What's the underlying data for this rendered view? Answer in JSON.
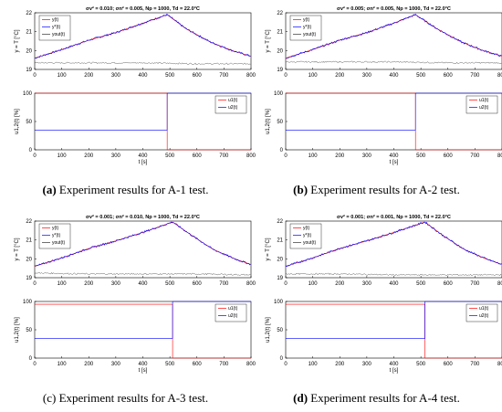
{
  "panels": [
    {
      "id": "A-1",
      "title": "σv² = 0.010; σn² = 0.005, Np = 1000, Td = 22.0°C",
      "caption_label": "(a)",
      "caption_text": " Experiment results for A-1 test.",
      "switch_time": 490
    },
    {
      "id": "A-2",
      "title": "σv² = 0.005; σn² = 0.005, Np = 1000, Td = 22.0°C",
      "caption_label": "(b)",
      "caption_text": " Experiment results for A-2 test.",
      "switch_time": 480
    },
    {
      "id": "A-3",
      "title": "σv² = 0.001; σn² = 0.010, Np = 1000, Td = 22.0°C",
      "caption_label": "(c)",
      "caption_text": " Experiment results for A-3 test.",
      "switch_time": 510
    },
    {
      "id": "A-4",
      "title": "σv² = 0.001; σn² = 0.001, Np = 1000, Td = 22.0°C",
      "caption_label": "(d)",
      "caption_text": " Experiment results for A-4 test.",
      "switch_time": 515
    }
  ],
  "chart_data": [
    {
      "type": "line",
      "title": "σv² = 0.010; σn² = 0.005, Np = 1000, Td = 22.0°C",
      "ylabel": "y = T [°C]",
      "xlim": [
        0,
        800
      ],
      "ylim": [
        19,
        22
      ],
      "xticks": [
        0,
        100,
        200,
        300,
        400,
        500,
        600,
        700,
        800
      ],
      "yticks": [
        19,
        20,
        21,
        22
      ],
      "legend": [
        "y(t)",
        "y*(t)",
        "yout(t)"
      ],
      "legend_position": "top-left",
      "series": [
        {
          "name": "y(t)",
          "color": "#ff0000",
          "x": [
            0,
            100,
            200,
            300,
            400,
            490,
            560,
            650,
            730,
            800
          ],
          "y": [
            19.6,
            20.05,
            20.55,
            20.95,
            21.45,
            21.9,
            21.15,
            20.45,
            20.0,
            19.7
          ]
        },
        {
          "name": "y*(t)",
          "color": "#0000ff",
          "x": [
            0,
            100,
            200,
            300,
            400,
            490,
            560,
            650,
            730,
            800
          ],
          "y": [
            19.6,
            20.05,
            20.55,
            20.95,
            21.45,
            21.9,
            21.15,
            20.45,
            20.0,
            19.7
          ]
        },
        {
          "name": "yout(t)",
          "color": "#333333",
          "x": [
            0,
            200,
            400,
            600,
            800
          ],
          "y": [
            19.35,
            19.35,
            19.35,
            19.3,
            19.3
          ]
        }
      ]
    },
    {
      "type": "line",
      "xlabel": "t [s]",
      "ylabel": "u1,2(t) [%]",
      "xlim": [
        0,
        800
      ],
      "ylim": [
        0,
        100
      ],
      "xticks": [
        0,
        100,
        200,
        300,
        400,
        500,
        600,
        700,
        800
      ],
      "yticks": [
        0,
        50,
        100
      ],
      "legend": [
        "u1(t)",
        "u2(t)"
      ],
      "legend_position": "top-right",
      "series": [
        {
          "name": "u1(t)",
          "color": "#ff0000",
          "x": [
            0,
            490,
            490,
            800
          ],
          "y": [
            100,
            100,
            0,
            0
          ]
        },
        {
          "name": "u2(t)",
          "color": "#0000ff",
          "x": [
            0,
            490,
            490,
            800
          ],
          "y": [
            35,
            35,
            100,
            100
          ]
        }
      ]
    },
    {
      "type": "line",
      "title": "σv² = 0.005; σn² = 0.005, Np = 1000, Td = 22.0°C",
      "ylabel": "y = T [°C]",
      "xlim": [
        0,
        800
      ],
      "ylim": [
        19,
        22
      ],
      "xticks": [
        0,
        100,
        200,
        300,
        400,
        500,
        600,
        700,
        800
      ],
      "yticks": [
        19,
        20,
        21,
        22
      ],
      "legend": [
        "y(t)",
        "y*(t)",
        "yout(t)"
      ],
      "legend_position": "top-left",
      "series": [
        {
          "name": "y(t)",
          "color": "#ff0000",
          "x": [
            0,
            100,
            200,
            300,
            400,
            480,
            560,
            650,
            730,
            800
          ],
          "y": [
            19.6,
            20.05,
            20.55,
            20.95,
            21.45,
            21.9,
            21.15,
            20.45,
            20.0,
            19.7
          ]
        },
        {
          "name": "y*(t)",
          "color": "#0000ff",
          "x": [
            0,
            100,
            200,
            300,
            400,
            480,
            560,
            650,
            730,
            800
          ],
          "y": [
            19.6,
            20.05,
            20.55,
            20.95,
            21.45,
            21.9,
            21.15,
            20.45,
            20.0,
            19.7
          ]
        },
        {
          "name": "yout(t)",
          "color": "#333333",
          "x": [
            0,
            200,
            400,
            600,
            800
          ],
          "y": [
            19.4,
            19.4,
            19.4,
            19.35,
            19.35
          ]
        }
      ]
    },
    {
      "type": "line",
      "xlabel": "t [s]",
      "ylabel": "u1,2(t) [%]",
      "xlim": [
        0,
        800
      ],
      "ylim": [
        0,
        100
      ],
      "xticks": [
        0,
        100,
        200,
        300,
        400,
        500,
        600,
        700,
        800
      ],
      "yticks": [
        0,
        50,
        100
      ],
      "legend": [
        "u1(t)",
        "u2(t)"
      ],
      "legend_position": "top-right",
      "series": [
        {
          "name": "u1(t)",
          "color": "#ff0000",
          "x": [
            0,
            480,
            480,
            800
          ],
          "y": [
            100,
            100,
            0,
            0
          ]
        },
        {
          "name": "u2(t)",
          "color": "#0000ff",
          "x": [
            0,
            480,
            480,
            800
          ],
          "y": [
            35,
            35,
            100,
            100
          ]
        }
      ]
    },
    {
      "type": "line",
      "title": "σv² = 0.001; σn² = 0.010, Np = 1000, Td = 22.0°C",
      "ylabel": "y = T [°C]",
      "xlim": [
        0,
        800
      ],
      "ylim": [
        19,
        22
      ],
      "xticks": [
        0,
        100,
        200,
        300,
        400,
        500,
        600,
        700,
        800
      ],
      "yticks": [
        19,
        20,
        21,
        22
      ],
      "legend": [
        "y(t)",
        "y*(t)",
        "yout(t)"
      ],
      "legend_position": "top-left",
      "series": [
        {
          "name": "y(t)",
          "color": "#ff0000",
          "x": [
            0,
            100,
            200,
            300,
            400,
            510,
            580,
            660,
            740,
            800
          ],
          "y": [
            19.6,
            20.05,
            20.55,
            20.95,
            21.4,
            21.95,
            21.25,
            20.5,
            20.0,
            19.7
          ]
        },
        {
          "name": "y*(t)",
          "color": "#0000ff",
          "x": [
            0,
            100,
            200,
            300,
            400,
            510,
            580,
            660,
            740,
            800
          ],
          "y": [
            19.6,
            20.05,
            20.55,
            20.95,
            21.4,
            21.95,
            21.25,
            20.5,
            20.0,
            19.7
          ]
        },
        {
          "name": "yout(t)",
          "color": "#333333",
          "x": [
            0,
            200,
            400,
            600,
            800
          ],
          "y": [
            19.25,
            19.2,
            19.2,
            19.2,
            19.15
          ]
        }
      ]
    },
    {
      "type": "line",
      "xlabel": "t [s]",
      "ylabel": "u1,2(t) [%]",
      "xlim": [
        0,
        800
      ],
      "ylim": [
        0,
        100
      ],
      "xticks": [
        0,
        100,
        200,
        300,
        400,
        500,
        600,
        700,
        800
      ],
      "yticks": [
        0,
        50,
        100
      ],
      "legend": [
        "u1(t)",
        "u2(t)"
      ],
      "legend_position": "top-right",
      "series": [
        {
          "name": "u1(t)",
          "color": "#ff0000",
          "x": [
            0,
            510,
            510,
            800
          ],
          "y": [
            95,
            95,
            0,
            0
          ]
        },
        {
          "name": "u2(t)",
          "color": "#0000ff",
          "x": [
            0,
            510,
            510,
            800
          ],
          "y": [
            35,
            35,
            100,
            100
          ]
        }
      ]
    },
    {
      "type": "line",
      "title": "σv² = 0.001; σn² = 0.001, Np = 1000, Td = 22.0°C",
      "ylabel": "y = T [°C]",
      "xlim": [
        0,
        800
      ],
      "ylim": [
        19,
        22
      ],
      "xticks": [
        0,
        100,
        200,
        300,
        400,
        500,
        600,
        700,
        800
      ],
      "yticks": [
        19,
        20,
        21,
        22
      ],
      "legend": [
        "y(t)",
        "y*(t)",
        "yout(t)"
      ],
      "legend_position": "top-left",
      "series": [
        {
          "name": "y(t)",
          "color": "#ff0000",
          "x": [
            0,
            100,
            200,
            300,
            400,
            515,
            580,
            660,
            740,
            800
          ],
          "y": [
            19.6,
            20.05,
            20.55,
            20.95,
            21.4,
            21.95,
            21.25,
            20.5,
            20.0,
            19.7
          ]
        },
        {
          "name": "y*(t)",
          "color": "#0000ff",
          "x": [
            0,
            100,
            200,
            300,
            400,
            515,
            580,
            660,
            740,
            800
          ],
          "y": [
            19.6,
            20.05,
            20.55,
            20.95,
            21.4,
            21.95,
            21.25,
            20.5,
            20.0,
            19.7
          ]
        },
        {
          "name": "yout(t)",
          "color": "#333333",
          "x": [
            0,
            200,
            400,
            600,
            800
          ],
          "y": [
            19.2,
            19.2,
            19.15,
            19.15,
            19.15
          ]
        }
      ]
    },
    {
      "type": "line",
      "xlabel": "t [s]",
      "ylabel": "u1,2(t) [%]",
      "xlim": [
        0,
        800
      ],
      "ylim": [
        0,
        100
      ],
      "xticks": [
        0,
        100,
        200,
        300,
        400,
        500,
        600,
        700,
        800
      ],
      "yticks": [
        0,
        50,
        100
      ],
      "legend": [
        "u1(t)",
        "u2(t)"
      ],
      "legend_position": "top-right",
      "series": [
        {
          "name": "u1(t)",
          "color": "#ff0000",
          "x": [
            0,
            515,
            515,
            800
          ],
          "y": [
            95,
            95,
            0,
            0
          ]
        },
        {
          "name": "u2(t)",
          "color": "#0000ff",
          "x": [
            0,
            515,
            515,
            800
          ],
          "y": [
            35,
            35,
            100,
            100
          ]
        }
      ]
    }
  ]
}
